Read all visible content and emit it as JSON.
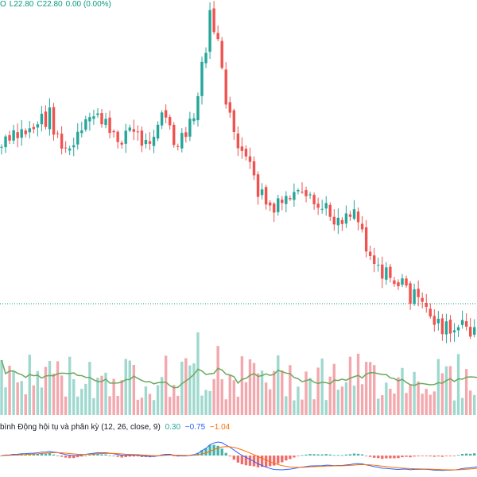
{
  "legend": {
    "prefix": "O",
    "low": "L22.80",
    "close": "C22.80",
    "change": "0.00 (0.00%)"
  },
  "macd": {
    "title": "bình Động hội tụ và phân kỳ (12, 26, close, 9)",
    "hist_value": "0.30",
    "macd_value": "−0.75",
    "signal_value": "−1.04"
  },
  "colors": {
    "up": "#26a69a",
    "down": "#ef5350",
    "vol_up": "#9fd8ce",
    "vol_down": "#f3a8ad",
    "vol_ma": "#6aa85e",
    "macd_line": "#2962ff",
    "signal_line": "#ff6d00",
    "price_line": "#089981"
  }
}
